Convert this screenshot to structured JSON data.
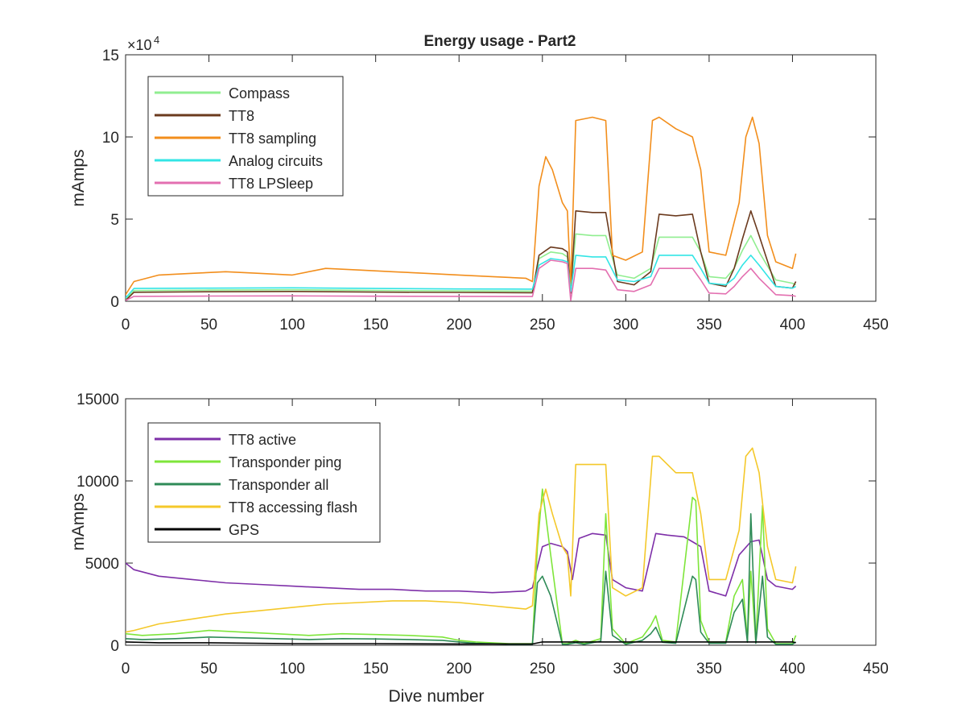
{
  "figure": {
    "title": "Energy usage - Part2"
  },
  "chart_data": [
    {
      "type": "line",
      "title": "Energy usage - Part2",
      "xlabel": "",
      "ylabel": "mAmps",
      "xlim": [
        0,
        450
      ],
      "ylim": [
        0,
        150000
      ],
      "xticks": [
        0,
        50,
        100,
        150,
        200,
        250,
        300,
        350,
        400,
        450
      ],
      "yticks": [
        0,
        50000,
        100000,
        150000
      ],
      "ytick_labels": [
        "0",
        "5",
        "10",
        "15"
      ],
      "exponent_label": "×10",
      "exponent_power": "4",
      "grid": false,
      "legend": "top-left",
      "series": [
        {
          "name": "Compass",
          "color": "#90ee90",
          "x": [
            0,
            5,
            50,
            100,
            150,
            200,
            244,
            248,
            255,
            262,
            265,
            267,
            270,
            280,
            288,
            295,
            305,
            315,
            320,
            330,
            340,
            345,
            350,
            360,
            365,
            370,
            375,
            380,
            390,
            400,
            402
          ],
          "y": [
            1000,
            6500,
            6800,
            7000,
            6600,
            6300,
            6200,
            26000,
            30000,
            29000,
            27000,
            8000,
            41000,
            40000,
            40000,
            16000,
            14000,
            20000,
            39000,
            39000,
            39000,
            30000,
            15000,
            14000,
            20000,
            31000,
            40000,
            30000,
            13000,
            11000,
            10000
          ]
        },
        {
          "name": "TT8",
          "color": "#6b3a1e",
          "x": [
            0,
            5,
            50,
            100,
            150,
            200,
            244,
            248,
            255,
            262,
            265,
            267,
            270,
            280,
            288,
            295,
            305,
            315,
            320,
            330,
            340,
            345,
            350,
            360,
            365,
            370,
            375,
            380,
            390,
            400,
            402
          ],
          "y": [
            500,
            5500,
            5800,
            6000,
            5600,
            5400,
            5200,
            28000,
            33000,
            32000,
            30000,
            5000,
            55000,
            54000,
            54000,
            12000,
            10000,
            18000,
            53000,
            52000,
            53000,
            30000,
            11000,
            9000,
            20000,
            38000,
            55000,
            40000,
            9000,
            8000,
            12000
          ]
        },
        {
          "name": "TT8 sampling",
          "color": "#f28e1c",
          "x": [
            0,
            5,
            20,
            40,
            60,
            80,
            100,
            120,
            140,
            160,
            180,
            200,
            220,
            240,
            244,
            248,
            252,
            256,
            262,
            265,
            267,
            270,
            280,
            288,
            292,
            300,
            310,
            316,
            320,
            330,
            340,
            345,
            350,
            360,
            368,
            372,
            376,
            380,
            385,
            390,
            400,
            402
          ],
          "y": [
            4000,
            12000,
            16000,
            17000,
            18000,
            17000,
            16000,
            20000,
            19000,
            18000,
            17000,
            16000,
            15000,
            14000,
            12000,
            70000,
            88000,
            80000,
            60000,
            55000,
            10000,
            110000,
            112000,
            110000,
            28000,
            25000,
            30000,
            110000,
            112000,
            105000,
            100000,
            80000,
            30000,
            28000,
            60000,
            100000,
            112000,
            96000,
            40000,
            24000,
            20000,
            29000
          ]
        },
        {
          "name": "Analog circuits",
          "color": "#33e5e5",
          "x": [
            0,
            5,
            50,
            100,
            150,
            200,
            244,
            248,
            255,
            262,
            265,
            267,
            270,
            280,
            288,
            295,
            305,
            315,
            320,
            330,
            340,
            345,
            350,
            360,
            365,
            370,
            375,
            380,
            390,
            400,
            402
          ],
          "y": [
            2000,
            7800,
            8000,
            8200,
            7800,
            7500,
            7400,
            22000,
            26000,
            25000,
            24000,
            6000,
            28000,
            27000,
            27000,
            13000,
            12000,
            15000,
            28000,
            28000,
            28000,
            20000,
            11000,
            10000,
            14000,
            22000,
            28000,
            22000,
            9000,
            8000,
            9000
          ]
        },
        {
          "name": "TT8 LPSleep",
          "color": "#e36fb0",
          "x": [
            0,
            5,
            50,
            100,
            150,
            200,
            244,
            248,
            255,
            262,
            265,
            267,
            270,
            280,
            288,
            295,
            305,
            315,
            320,
            330,
            340,
            345,
            350,
            360,
            365,
            370,
            375,
            380,
            390,
            400,
            402
          ],
          "y": [
            500,
            3000,
            3200,
            3300,
            3100,
            3000,
            2900,
            20000,
            25000,
            24000,
            23000,
            500,
            20000,
            20000,
            19000,
            7000,
            6000,
            10000,
            20000,
            20000,
            20000,
            13000,
            5000,
            4500,
            9000,
            15000,
            20000,
            14000,
            4000,
            3500,
            3000
          ]
        }
      ]
    },
    {
      "type": "line",
      "title": "",
      "xlabel": "Dive number",
      "ylabel": "mAmps",
      "xlim": [
        0,
        450
      ],
      "ylim": [
        0,
        15000
      ],
      "xticks": [
        0,
        50,
        100,
        150,
        200,
        250,
        300,
        350,
        400,
        450
      ],
      "yticks": [
        0,
        5000,
        10000,
        15000
      ],
      "ytick_labels": [
        "0",
        "5000",
        "10000",
        "15000"
      ],
      "grid": false,
      "legend": "top-left",
      "series": [
        {
          "name": "TT8 active",
          "color": "#7e2fa8",
          "x": [
            0,
            5,
            20,
            40,
            60,
            80,
            100,
            120,
            140,
            160,
            180,
            200,
            220,
            240,
            244,
            250,
            255,
            262,
            265,
            268,
            272,
            280,
            288,
            292,
            300,
            310,
            318,
            325,
            335,
            340,
            345,
            350,
            360,
            368,
            375,
            380,
            385,
            390,
            400,
            402
          ],
          "y": [
            5000,
            4600,
            4200,
            4000,
            3800,
            3700,
            3600,
            3500,
            3400,
            3400,
            3300,
            3300,
            3200,
            3300,
            3500,
            6000,
            6200,
            6000,
            5700,
            4000,
            6500,
            6800,
            6700,
            4000,
            3500,
            3300,
            6800,
            6700,
            6600,
            6300,
            6000,
            3300,
            3000,
            5500,
            6300,
            6400,
            4000,
            3600,
            3400,
            3600
          ]
        },
        {
          "name": "Transponder ping",
          "color": "#7ee53a",
          "x": [
            0,
            10,
            30,
            50,
            70,
            90,
            110,
            130,
            150,
            170,
            190,
            200,
            210,
            230,
            244,
            247,
            250,
            255,
            262,
            265,
            270,
            275,
            285,
            288,
            292,
            300,
            310,
            315,
            318,
            322,
            330,
            340,
            342,
            345,
            350,
            360,
            365,
            370,
            373,
            375,
            378,
            382,
            385,
            390,
            400,
            402
          ],
          "y": [
            700,
            600,
            700,
            900,
            800,
            700,
            600,
            700,
            650,
            600,
            500,
            300,
            200,
            100,
            100,
            6000,
            9500,
            5500,
            100,
            100,
            300,
            100,
            400,
            8000,
            1000,
            100,
            500,
            1200,
            1800,
            300,
            200,
            9000,
            8800,
            1500,
            200,
            200,
            3000,
            4000,
            300,
            4500,
            200,
            8500,
            1000,
            100,
            100,
            600
          ]
        },
        {
          "name": "Transponder all",
          "color": "#2e8b57",
          "x": [
            0,
            10,
            30,
            50,
            70,
            90,
            110,
            130,
            150,
            170,
            190,
            200,
            210,
            230,
            244,
            247,
            250,
            255,
            262,
            265,
            270,
            275,
            285,
            288,
            292,
            300,
            310,
            315,
            318,
            322,
            330,
            340,
            342,
            345,
            350,
            360,
            365,
            370,
            373,
            375,
            378,
            382,
            385,
            390,
            400,
            402
          ],
          "y": [
            400,
            350,
            400,
            500,
            450,
            400,
            350,
            400,
            380,
            350,
            300,
            200,
            120,
            60,
            60,
            3800,
            4200,
            3000,
            60,
            60,
            150,
            60,
            250,
            4500,
            600,
            60,
            300,
            700,
            1100,
            180,
            120,
            4200,
            4000,
            800,
            120,
            120,
            2000,
            2800,
            180,
            8000,
            120,
            4200,
            500,
            60,
            60,
            200
          ]
        },
        {
          "name": "TT8 accessing flash",
          "color": "#f4c82a",
          "x": [
            0,
            5,
            20,
            40,
            60,
            80,
            100,
            120,
            140,
            160,
            180,
            200,
            220,
            240,
            244,
            248,
            252,
            256,
            262,
            265,
            267,
            270,
            280,
            288,
            292,
            300,
            310,
            316,
            320,
            330,
            340,
            345,
            350,
            360,
            368,
            372,
            376,
            380,
            385,
            390,
            400,
            402
          ],
          "y": [
            800,
            900,
            1300,
            1600,
            1900,
            2100,
            2300,
            2500,
            2600,
            2700,
            2700,
            2600,
            2400,
            2200,
            2400,
            8000,
            9500,
            8000,
            6000,
            5500,
            3000,
            11000,
            11000,
            11000,
            3500,
            3000,
            3500,
            11500,
            11500,
            10500,
            10500,
            8000,
            4000,
            4000,
            7000,
            11500,
            12000,
            10500,
            6000,
            4000,
            3800,
            4800
          ]
        },
        {
          "name": "GPS",
          "color": "#000000",
          "x": [
            0,
            20,
            50,
            100,
            150,
            200,
            244,
            250,
            300,
            350,
            400,
            402
          ],
          "y": [
            200,
            150,
            150,
            100,
            100,
            80,
            80,
            200,
            200,
            200,
            200,
            150
          ]
        }
      ]
    }
  ]
}
